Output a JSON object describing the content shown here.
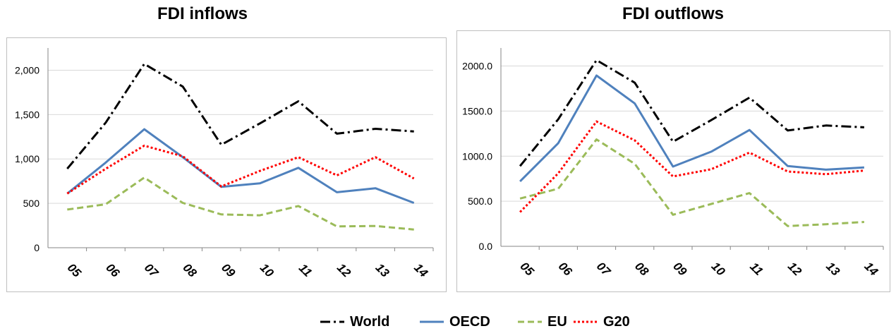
{
  "charts": {
    "inflows": {
      "title": "FDI inflows"
    },
    "outflows": {
      "title": "FDI outflows"
    }
  },
  "legend": [
    {
      "name": "World",
      "color": "#000000",
      "dash": "dashdot"
    },
    {
      "name": "OECD",
      "color": "#4f81bd",
      "dash": "solid"
    },
    {
      "name": "EU",
      "color": "#9bbb59",
      "dash": "dash"
    },
    {
      "name": "G20",
      "color": "#ff0000",
      "dash": "dot"
    }
  ],
  "chart_data": [
    {
      "type": "line",
      "title": "FDI inflows",
      "categories": [
        "05",
        "06",
        "07",
        "08",
        "09",
        "10",
        "11",
        "12",
        "13",
        "14"
      ],
      "yticks": [
        "0",
        "500",
        "1,000",
        "1,500",
        "2,000"
      ],
      "ylim": [
        0,
        2250
      ],
      "grid": true,
      "series": [
        {
          "name": "World",
          "values": [
            890,
            1410,
            2070,
            1815,
            1160,
            1400,
            1650,
            1285,
            1340,
            1310
          ]
        },
        {
          "name": "OECD",
          "values": [
            610,
            960,
            1335,
            1020,
            685,
            725,
            900,
            625,
            670,
            505
          ]
        },
        {
          "name": "EU",
          "values": [
            430,
            490,
            790,
            505,
            375,
            365,
            470,
            240,
            245,
            205
          ]
        },
        {
          "name": "G20",
          "values": [
            610,
            890,
            1150,
            1030,
            690,
            865,
            1020,
            815,
            1020,
            780
          ]
        }
      ]
    },
    {
      "type": "line",
      "title": "FDI outflows",
      "categories": [
        "05",
        "06",
        "07",
        "08",
        "09",
        "10",
        "11",
        "12",
        "13",
        "14"
      ],
      "yticks": [
        "0.0",
        "500.0",
        "1000.0",
        "1500.0",
        "2000.0"
      ],
      "ylim": [
        0,
        2200
      ],
      "grid": true,
      "series": [
        {
          "name": "World",
          "values": [
            890,
            1410,
            2065,
            1815,
            1160,
            1400,
            1650,
            1285,
            1340,
            1320
          ]
        },
        {
          "name": "OECD",
          "values": [
            720,
            1145,
            1895,
            1585,
            885,
            1050,
            1290,
            890,
            850,
            875
          ]
        },
        {
          "name": "EU",
          "values": [
            530,
            640,
            1185,
            915,
            350,
            470,
            590,
            225,
            245,
            270
          ]
        },
        {
          "name": "G20",
          "values": [
            380,
            810,
            1385,
            1175,
            775,
            855,
            1040,
            830,
            800,
            840
          ]
        }
      ]
    }
  ]
}
